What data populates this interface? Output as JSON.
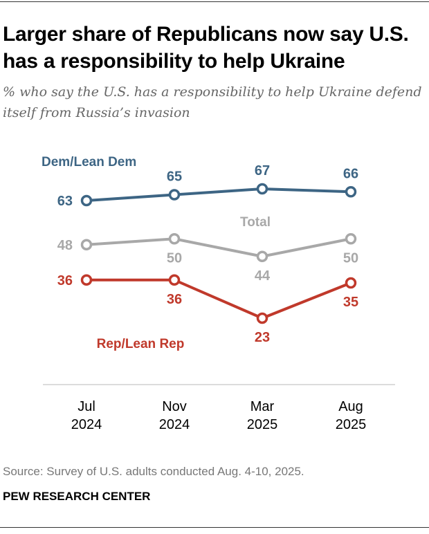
{
  "title": "Larger share of Republicans now say U.S. has a responsibility to help Ukraine",
  "subtitle": "% who say the U.S. has a responsibility to help Ukraine defend itself from Russia’s invasion",
  "source": "Source: Survey of U.S. adults conducted Aug. 4-10, 2025.",
  "brand": "PEW RESEARCH CENTER",
  "chart_data": {
    "type": "line",
    "title": "Larger share of Republicans now say U.S. has a responsibility to help Ukraine",
    "subtitle": "% who say the U.S. has a responsibility to help Ukraine defend itself from Russia’s invasion",
    "xlabel": "",
    "ylabel": "",
    "categories": [
      {
        "month": "Jul",
        "year": "2024"
      },
      {
        "month": "Nov",
        "year": "2024"
      },
      {
        "month": "Mar",
        "year": "2025"
      },
      {
        "month": "Aug",
        "year": "2025"
      }
    ],
    "series": [
      {
        "name": "Dem/Lean Dem",
        "color": "#3d6584",
        "values": [
          63,
          65,
          67,
          66
        ],
        "label_positions": [
          "left",
          "above",
          "above",
          "above"
        ]
      },
      {
        "name": "Total",
        "color": "#a8a8a8",
        "values": [
          48,
          50,
          44,
          50
        ],
        "label_positions": [
          "left",
          "below",
          "below",
          "below"
        ]
      },
      {
        "name": "Rep/Lean Rep",
        "color": "#c0392b",
        "values": [
          36,
          36,
          23,
          35
        ],
        "label_positions": [
          "left",
          "below",
          "below",
          "below"
        ]
      }
    ],
    "grid": false,
    "legend": "inline"
  }
}
